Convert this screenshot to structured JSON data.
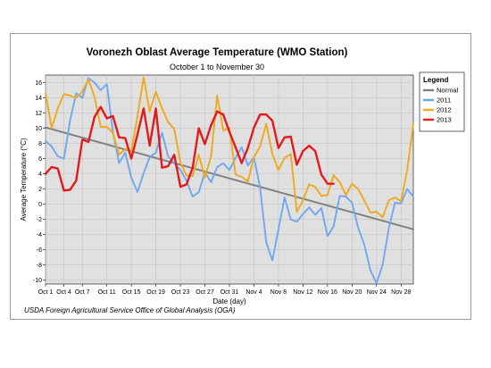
{
  "chart_data": {
    "type": "line",
    "title": "Voronezh Oblast Average Temperature (WMO Station)",
    "subtitle": "October 1 to November 30",
    "xlabel": "Date (day)",
    "ylabel": "Average Temperature (°C)",
    "ylim": [
      -10.5,
      17
    ],
    "yticks": [
      16,
      14,
      12,
      10,
      8,
      6,
      4,
      2,
      0,
      -2,
      -4,
      -6,
      -8,
      -10
    ],
    "xlim": [
      0,
      60
    ],
    "xtick_positions": [
      0,
      3,
      6,
      10,
      14,
      18,
      22,
      26,
      30,
      34,
      38,
      42,
      46,
      50,
      54,
      58
    ],
    "xtick_labels": [
      "Oct 1",
      "Oct 4",
      "Oct 7",
      "Oct 11",
      "Oct 15",
      "Oct 19",
      "Oct 23",
      "Oct 27",
      "Oct 31",
      "Nov 4",
      "Nov 8",
      "Nov 12",
      "Nov 16",
      "Nov 20",
      "Nov 24",
      "Nov 28"
    ],
    "grid": true,
    "legend_title": "Legend",
    "legend_position": "right",
    "series": [
      {
        "name": "Normal",
        "color": "#7f7f7f",
        "x": [
          0,
          60
        ],
        "values": [
          10.1,
          -3.3
        ]
      },
      {
        "name": "2011",
        "color": "#6fa8f0",
        "values": [
          8.3,
          7.6,
          6.3,
          6.0,
          11.0,
          14.6,
          14.0,
          16.6,
          16.0,
          15.0,
          15.8,
          9.5,
          5.4,
          6.8,
          3.5,
          1.6,
          4.1,
          6.2,
          6.8,
          9.4,
          6.3,
          5.4,
          4.5,
          3.1,
          1.0,
          1.6,
          4.2,
          2.9,
          4.9,
          5.4,
          4.5,
          6.1,
          7.5,
          5.1,
          6.2,
          2.2,
          -5.0,
          -7.4,
          -3.3,
          0.9,
          -2.0,
          -2.3,
          -1.3,
          -0.4,
          -1.4,
          -0.5,
          -4.2,
          -2.9,
          1.1,
          1.0,
          0.2,
          -3.1,
          -5.3,
          -8.7,
          -10.4,
          -7.9,
          -3.2,
          0.2,
          0.1,
          2.0,
          1.0
        ]
      },
      {
        "name": "2012",
        "color": "#f0a81c",
        "values": [
          14.6,
          10.0,
          12.6,
          14.5,
          14.3,
          14.0,
          14.8,
          16.4,
          14.1,
          10.2,
          10.2,
          9.4,
          6.5,
          7.3,
          7.0,
          11.6,
          16.7,
          12.2,
          14.8,
          12.6,
          10.8,
          9.9,
          5.5,
          3.8,
          3.7,
          6.5,
          3.5,
          6.3,
          14.3,
          9.7,
          10.1,
          3.9,
          3.6,
          3.0,
          6.2,
          7.6,
          10.6,
          6.6,
          4.5,
          6.1,
          6.6,
          -1.0,
          0.5,
          2.6,
          2.3,
          1.1,
          1.2,
          3.8,
          2.9,
          1.2,
          2.7,
          2.0,
          0.5,
          -1.1,
          -1.0,
          -1.7,
          0.5,
          0.9,
          0.4,
          4.5,
          10.6
        ]
      },
      {
        "name": "2013",
        "color": "#e31a1c",
        "x": [
          0,
          1,
          2,
          3,
          4,
          5,
          6,
          7,
          8,
          9,
          10,
          11,
          12,
          13,
          14,
          15,
          16,
          17,
          18,
          19,
          20,
          21,
          22,
          23,
          24,
          25,
          26,
          27,
          28,
          29,
          30,
          31,
          32,
          33,
          34,
          35,
          36,
          37,
          38,
          39,
          40,
          41,
          42,
          43,
          44,
          45,
          46,
          47
        ],
        "values": [
          4.0,
          4.9,
          4.7,
          1.8,
          1.9,
          3.1,
          8.5,
          8.2,
          11.5,
          12.8,
          11.3,
          11.6,
          8.8,
          8.7,
          6.0,
          9.2,
          12.6,
          7.7,
          12.6,
          4.8,
          5.0,
          6.5,
          2.3,
          2.6,
          4.8,
          10.0,
          7.9,
          10.4,
          12.2,
          11.8,
          9.5,
          7.5,
          5.4,
          7.4,
          10.1,
          11.8,
          11.8,
          11.0,
          7.4,
          8.8,
          8.9,
          5.2,
          7.0,
          7.7,
          7.0,
          3.9,
          2.7,
          2.7
        ]
      }
    ],
    "annotations": [
      "USDA Foreign Agricultural Service Office of Global Analysis (OGA)"
    ]
  }
}
